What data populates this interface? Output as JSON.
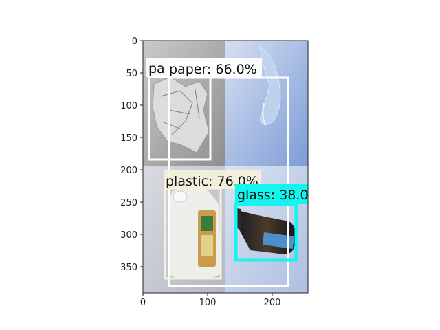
{
  "figure": {
    "x_ticks": [
      "0",
      "100",
      "200"
    ],
    "y_ticks": [
      "0",
      "50",
      "100",
      "150",
      "200",
      "250",
      "300",
      "350"
    ]
  },
  "detections": [
    {
      "id": "paper-small",
      "label": "pa",
      "color": "#ffffff"
    },
    {
      "id": "paper",
      "label": "paper: 66.0%",
      "color": "#ffffff"
    },
    {
      "id": "plastic",
      "label": "plastic: 76.0%",
      "color": "#f5f1dc"
    },
    {
      "id": "glass",
      "label": "glass: 38.0",
      "color": "#14f5f0"
    }
  ]
}
